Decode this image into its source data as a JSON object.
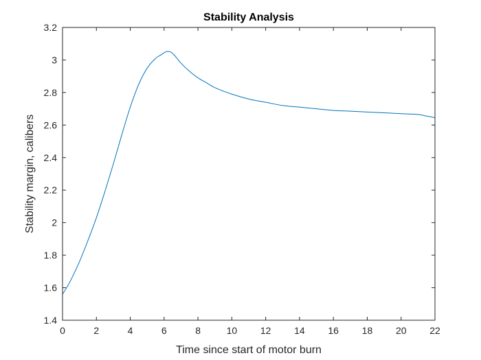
{
  "chart_data": {
    "type": "line",
    "title": "Stability Analysis",
    "xlabel": "Time since start of motor burn",
    "ylabel": "Stability margin, calibers",
    "xlim": [
      0,
      22
    ],
    "ylim": [
      1.4,
      3.2
    ],
    "xticks": [
      0,
      2,
      4,
      6,
      8,
      10,
      12,
      14,
      16,
      18,
      20,
      22
    ],
    "yticks": [
      1.4,
      1.6,
      1.8,
      2,
      2.2,
      2.4,
      2.6,
      2.8,
      3,
      3.2
    ],
    "xtick_labels": [
      "0",
      "2",
      "4",
      "6",
      "8",
      "10",
      "12",
      "14",
      "16",
      "18",
      "20",
      "22"
    ],
    "ytick_labels": [
      "1.4",
      "1.6",
      "1.8",
      "2",
      "2.2",
      "2.4",
      "2.6",
      "2.8",
      "3",
      "3.2"
    ],
    "grid": false,
    "line_color": "#0072BD",
    "series": [
      {
        "x": [
          0,
          0.3,
          0.6,
          1.0,
          1.5,
          2.0,
          2.5,
          3.0,
          3.5,
          4.0,
          4.5,
          5.0,
          5.5,
          5.8,
          6.1,
          6.35,
          6.6,
          7.0,
          7.5,
          8.0,
          8.5,
          9.0,
          10.0,
          11.0,
          12.0,
          13.0,
          14.0,
          15.0,
          16.0,
          17.0,
          18.0,
          19.0,
          20.0,
          21.0,
          21.5,
          22.0
        ],
        "y": [
          1.56,
          1.61,
          1.67,
          1.76,
          1.89,
          2.03,
          2.19,
          2.36,
          2.54,
          2.71,
          2.85,
          2.95,
          3.01,
          3.03,
          3.05,
          3.05,
          3.03,
          2.98,
          2.93,
          2.89,
          2.86,
          2.83,
          2.79,
          2.76,
          2.74,
          2.72,
          2.71,
          2.7,
          2.69,
          2.685,
          2.68,
          2.675,
          2.67,
          2.665,
          2.655,
          2.645
        ]
      }
    ]
  }
}
